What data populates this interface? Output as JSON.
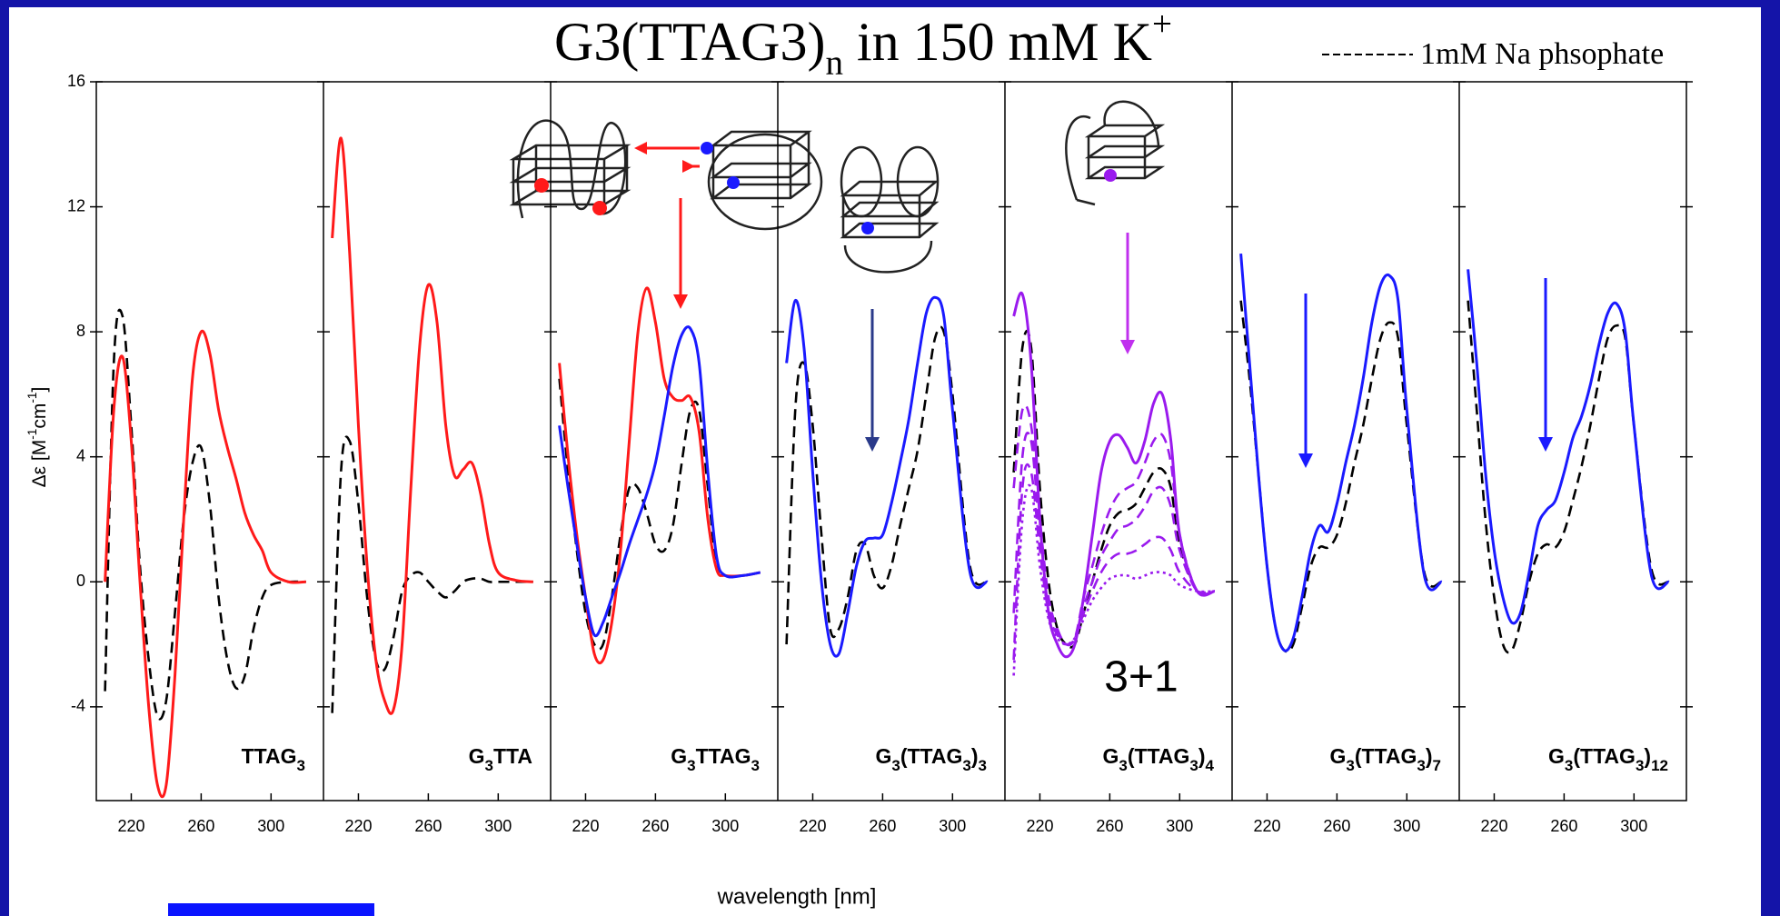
{
  "chart_data": {
    "type": "line",
    "title": [
      {
        "text": "G3(TTAG3)"
      },
      {
        "text": "n",
        "shift": "sub"
      },
      {
        "text": " in 150 mM K"
      },
      {
        "text": "+",
        "shift": "sup"
      }
    ],
    "legend": {
      "label": "1mM Na phsophate",
      "color": "#000000",
      "style": "dashed"
    },
    "ylabel": [
      {
        "text": "Δε [M"
      },
      {
        "text": "-1",
        "shift": "sup"
      },
      {
        "text": "cm"
      },
      {
        "text": "-1",
        "shift": "sup"
      },
      {
        "text": "]"
      }
    ],
    "xlabel": "wavelength [nm]",
    "annotation": {
      "text": "3+1",
      "color": "#9a1aee"
    },
    "ylim": [
      -7,
      16
    ],
    "yticks": [
      -4,
      0,
      4,
      8,
      12,
      16
    ],
    "xlim": [
      200,
      330
    ],
    "xticks": [
      220,
      260,
      300
    ],
    "x": [
      205,
      210,
      215,
      220,
      225,
      230,
      235,
      240,
      245,
      250,
      255,
      260,
      265,
      270,
      275,
      280,
      285,
      290,
      295,
      300,
      310,
      320
    ],
    "panels": [
      {
        "label": "TTAG3",
        "series": [
          {
            "color": "#000000",
            "style": "dashed",
            "values": [
              -3.5,
              7,
              8.5,
              5,
              0.5,
              -2.5,
              -4.3,
              -3.8,
              -1,
              2,
              3.8,
              4.3,
              2.5,
              -0.5,
              -2.5,
              -3.4,
              -3,
              -1.5,
              -0.5,
              -0.1,
              0,
              0
            ]
          },
          {
            "color": "#ff1a1a",
            "style": "solid",
            "values": [
              0,
              5.5,
              7.2,
              4.5,
              0,
              -4,
              -6.5,
              -6.5,
              -3,
              2,
              6.5,
              8,
              7.3,
              5.5,
              4.3,
              3.3,
              2.2,
              1.5,
              1,
              0.3,
              0,
              0
            ]
          }
        ]
      },
      {
        "label": "G3TTA",
        "series": [
          {
            "color": "#000000",
            "style": "dashed",
            "values": [
              -4.2,
              3.5,
              4.5,
              2.5,
              -0.5,
              -2.5,
              -2.8,
              -1.8,
              -0.3,
              0.2,
              0.3,
              0,
              -0.3,
              -0.5,
              -0.3,
              0,
              0.1,
              0.1,
              0,
              0,
              0,
              0
            ]
          },
          {
            "color": "#ff1a1a",
            "style": "solid",
            "values": [
              11,
              14.2,
              10.5,
              5,
              0.5,
              -2.5,
              -3.8,
              -4.1,
              -2,
              3,
              7.5,
              9.5,
              8.3,
              5,
              3.4,
              3.6,
              3.8,
              2.8,
              1.2,
              0.3,
              0.05,
              0
            ]
          }
        ]
      },
      {
        "label": "G3TTAG3",
        "series": [
          {
            "color": "#000000",
            "style": "dashed",
            "values": [
              6.5,
              3.5,
              1,
              -1,
              -2,
              -2,
              -0.5,
              1.5,
              3,
              3,
              2.2,
              1.2,
              1,
              1.8,
              3.8,
              5.5,
              5.5,
              3,
              0.5,
              0.2,
              0.2,
              0.3
            ]
          },
          {
            "color": "#ff1a1a",
            "style": "solid",
            "values": [
              7,
              4,
              1.5,
              -0.5,
              -2.3,
              -2.5,
              -1.3,
              1,
              4.5,
              8,
              9.4,
              8.3,
              6.5,
              5.9,
              5.8,
              5.9,
              4.8,
              2,
              0.4,
              0.2,
              0.2,
              0.3
            ]
          },
          {
            "color": "#1a1aff",
            "style": "solid",
            "values": [
              5,
              3,
              1.2,
              -0.5,
              -1.7,
              -1.3,
              -0.5,
              0.3,
              1.2,
              2,
              2.8,
              3.8,
              5.3,
              6.9,
              7.9,
              8.1,
              7,
              3.5,
              0.8,
              0.2,
              0.2,
              0.3
            ]
          }
        ]
      },
      {
        "label": "G3(TTAG3)3",
        "series": [
          {
            "color": "#000000",
            "style": "dashed",
            "values": [
              -2,
              5.5,
              7,
              5,
              1.5,
              -1.5,
              -1.5,
              -0.5,
              1,
              1.2,
              0.2,
              -0.2,
              0.5,
              1.8,
              3,
              4.2,
              6,
              7.8,
              8,
              6,
              0.5,
              0
            ]
          },
          {
            "color": "#1a1aff",
            "style": "solid",
            "values": [
              7,
              9,
              7.5,
              3.5,
              0,
              -2,
              -2.3,
              -1,
              0.5,
              1.3,
              1.4,
              1.5,
              2.5,
              3.8,
              5.2,
              7,
              8.6,
              9.1,
              8.5,
              5.5,
              0.3,
              0
            ]
          }
        ]
      },
      {
        "label": "G3(TTAG3)4",
        "series": [
          {
            "color": "#000000",
            "style": "dashed",
            "values": [
              3.5,
              7.5,
              7.5,
              3,
              0,
              -1.5,
              -2,
              -2,
              -1,
              0,
              1,
              1.8,
              2.2,
              2.3,
              2.5,
              3,
              3.5,
              3.6,
              3,
              1.2,
              -0.3,
              -0.3
            ]
          },
          {
            "color": "#9a1aee",
            "style": "solid",
            "values": [
              8.5,
              9.2,
              7,
              2,
              -1,
              -2,
              -2.4,
              -2,
              -0.5,
              1.5,
              3.5,
              4.5,
              4.7,
              4.3,
              3.8,
              4.5,
              5.7,
              6,
              4.5,
              1.5,
              -0.3,
              -0.3
            ]
          },
          {
            "color": "#9a1aee",
            "style": "dashed",
            "values": [
              3,
              5.5,
              5,
              2,
              -0.5,
              -1.5,
              -2,
              -1.8,
              -0.5,
              0.5,
              1.5,
              2.3,
              2.8,
              3,
              3.2,
              3.8,
              4.5,
              4.7,
              3.8,
              1.5,
              -0.3,
              -0.3
            ]
          },
          {
            "color": "#9a1aee",
            "style": "dashed",
            "values": [
              -1,
              4,
              4.5,
              1.5,
              -0.8,
              -1.6,
              -2,
              -1.8,
              -0.8,
              0,
              0.8,
              1.3,
              1.7,
              1.8,
              2,
              2.4,
              2.9,
              3,
              2.4,
              1,
              -0.3,
              -0.3
            ]
          },
          {
            "color": "#9a1aee",
            "style": "dashed",
            "values": [
              -2.5,
              3,
              3.5,
              1,
              -1,
              -1.7,
              -2,
              -1.8,
              -1,
              -0.3,
              0.3,
              0.7,
              0.9,
              0.9,
              1,
              1.2,
              1.4,
              1.4,
              1,
              0.3,
              -0.3,
              -0.3
            ]
          },
          {
            "color": "#9a1aee",
            "style": "dotted",
            "values": [
              -3,
              2,
              3,
              0.5,
              -1.2,
              -1.8,
              -2,
              -1.8,
              -1.2,
              -0.6,
              -0.2,
              0.1,
              0.2,
              0.2,
              0.1,
              0.2,
              0.3,
              0.3,
              0.2,
              -0.1,
              -0.3,
              -0.3
            ]
          }
        ]
      },
      {
        "label": "G3(TTAG3)7",
        "series": [
          {
            "color": "#000000",
            "style": "dashed",
            "values": [
              9,
              6.5,
              3.5,
              0.5,
              -1.5,
              -2.2,
              -2,
              -0.8,
              0.5,
              1.1,
              1.1,
              1.5,
              2.5,
              3.8,
              5,
              6.5,
              7.8,
              8.3,
              7.8,
              5,
              0.3,
              0
            ]
          },
          {
            "color": "#1a1aff",
            "style": "solid",
            "values": [
              10.5,
              7,
              3.5,
              0.5,
              -1.5,
              -2.2,
              -1.8,
              -0.5,
              1,
              1.8,
              1.6,
              2.5,
              3.8,
              5,
              6.5,
              8.3,
              9.5,
              9.8,
              9,
              5.5,
              0.2,
              0
            ]
          }
        ]
      },
      {
        "label": "G3(TTAG3)12",
        "series": [
          {
            "color": "#000000",
            "style": "dashed",
            "values": [
              9,
              5.5,
              2,
              -0.5,
              -2,
              -2.2,
              -1.3,
              0,
              0.9,
              1.2,
              1.1,
              1.6,
              2.6,
              3.7,
              5,
              6.5,
              7.8,
              8.2,
              7.8,
              5,
              0.4,
              0
            ]
          },
          {
            "color": "#1a1aff",
            "style": "solid",
            "values": [
              10,
              7,
              3.5,
              1,
              -0.5,
              -1.3,
              -1,
              0.3,
              1.8,
              2.3,
              2.6,
              3.5,
              4.6,
              5.3,
              6.3,
              7.6,
              8.6,
              8.9,
              8,
              5,
              0.2,
              0
            ]
          }
        ]
      }
    ]
  }
}
